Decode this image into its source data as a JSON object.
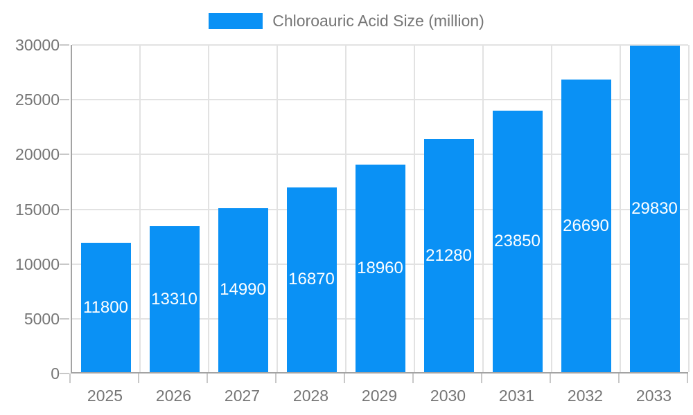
{
  "chart_data": {
    "type": "bar",
    "title": "Chloroauric Acid Size (million)",
    "categories": [
      "2025",
      "2026",
      "2027",
      "2028",
      "2029",
      "2030",
      "2031",
      "2032",
      "2033"
    ],
    "values": [
      11800,
      13310,
      14990,
      16870,
      18960,
      21280,
      23850,
      26690,
      29830
    ],
    "xlabel": "",
    "ylabel": "",
    "ylim": [
      0,
      30000
    ],
    "yticks": [
      0,
      5000,
      10000,
      15000,
      20000,
      25000,
      30000
    ],
    "grid": true,
    "legend_position": "top",
    "colors": {
      "bar": "#0a91f5",
      "value_label": "#ffffff",
      "axis_line": "#a3a3a3",
      "gridline": "#e2e2e2",
      "tick": "#c8c8c8",
      "axis_text": "#757575",
      "legend_text": "#757575"
    }
  }
}
